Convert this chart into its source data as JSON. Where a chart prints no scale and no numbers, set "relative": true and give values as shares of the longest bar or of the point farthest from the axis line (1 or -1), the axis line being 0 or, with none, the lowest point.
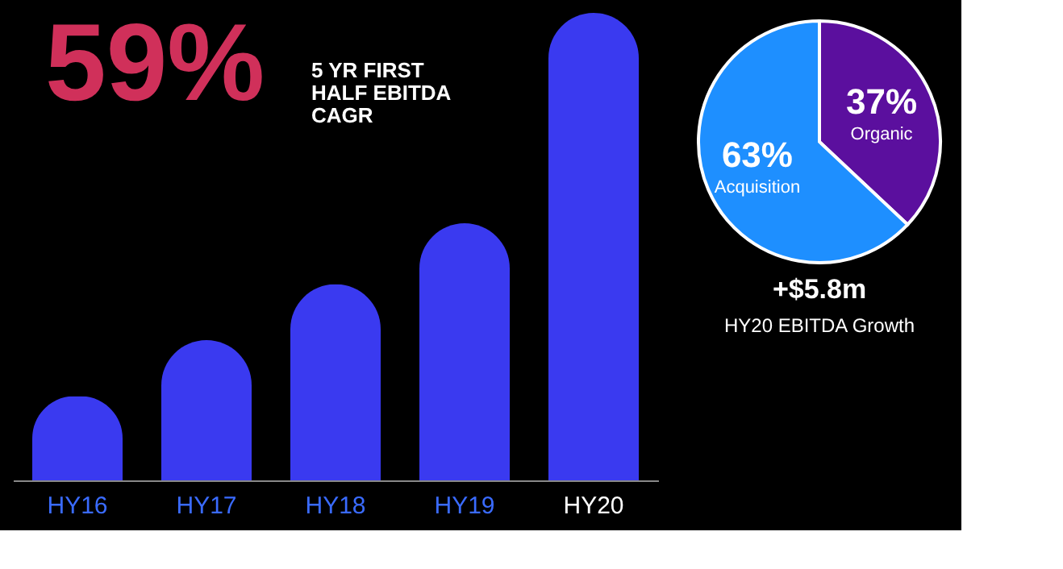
{
  "chart_data": [
    {
      "type": "bar",
      "relative": true,
      "categories": [
        "HY16",
        "HY17",
        "HY18",
        "HY19",
        "HY20"
      ],
      "values": [
        0.18,
        0.3,
        0.42,
        0.55,
        1
      ],
      "color": "#3a3af0",
      "annotations": [
        "59%",
        "5 YR FIRST HALF EBITDA CAGR"
      ],
      "grid": false
    },
    {
      "type": "pie",
      "categories": [
        "Organic",
        "Acquisition"
      ],
      "values": [
        37,
        63
      ],
      "colors": [
        "#5b0f9e",
        "#1e8fff"
      ],
      "value_labels": [
        "37%",
        "63%"
      ],
      "annotations": [
        "+$5.8m",
        "HY20 EBITDA Growth"
      ],
      "legend": false
    }
  ]
}
